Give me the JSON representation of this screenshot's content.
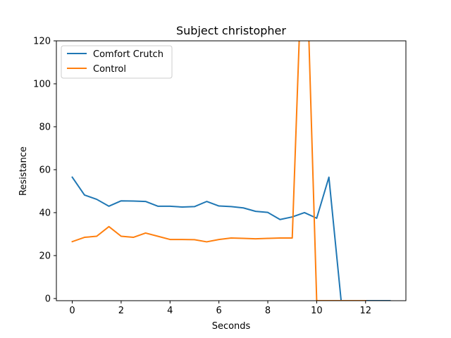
{
  "chart_data": {
    "type": "line",
    "title": "Subject christopher",
    "xlabel": "Seconds",
    "ylabel": "Resistance",
    "xlim": [
      -0.65,
      13.65
    ],
    "ylim": [
      -1,
      120
    ],
    "xticks": [
      0,
      2,
      4,
      6,
      8,
      10,
      12
    ],
    "yticks": [
      0,
      20,
      40,
      60,
      80,
      100,
      120
    ],
    "grid": false,
    "legend_position": "upper-left",
    "series": [
      {
        "name": "Comfort Crutch",
        "color": "#1f77b4",
        "x": [
          0,
          0.5,
          1,
          1.5,
          2,
          2.5,
          3,
          3.5,
          4,
          4.5,
          5,
          5.5,
          6,
          6.5,
          7,
          7.5,
          8,
          8.5,
          9,
          9.5,
          10,
          10.5,
          11,
          11.5,
          12,
          12.5,
          13
        ],
        "y": [
          56.5,
          48.2,
          46.2,
          43.0,
          45.5,
          45.4,
          45.2,
          43.0,
          43.0,
          42.6,
          42.8,
          45.2,
          43.1,
          42.8,
          42.2,
          40.6,
          40.1,
          36.8,
          38.0,
          40.0,
          37.4,
          56.5,
          -1,
          -1,
          -1,
          -1,
          -1
        ]
      },
      {
        "name": "Control",
        "color": "#ff7f0e",
        "x": [
          0,
          0.5,
          1,
          1.5,
          2,
          2.5,
          3,
          3.5,
          4,
          4.5,
          5,
          5.5,
          6,
          6.5,
          7,
          7.5,
          8,
          8.5,
          9,
          9.5,
          10,
          10.5,
          11,
          11.5,
          12
        ],
        "y": [
          26.5,
          28.5,
          29.0,
          33.5,
          29.0,
          28.5,
          30.5,
          29.0,
          27.5,
          27.5,
          27.4,
          26.4,
          27.5,
          28.2,
          28.0,
          27.8,
          28.0,
          28.2,
          28.2,
          190,
          -1,
          -1,
          -1,
          -1,
          -1
        ]
      }
    ]
  }
}
